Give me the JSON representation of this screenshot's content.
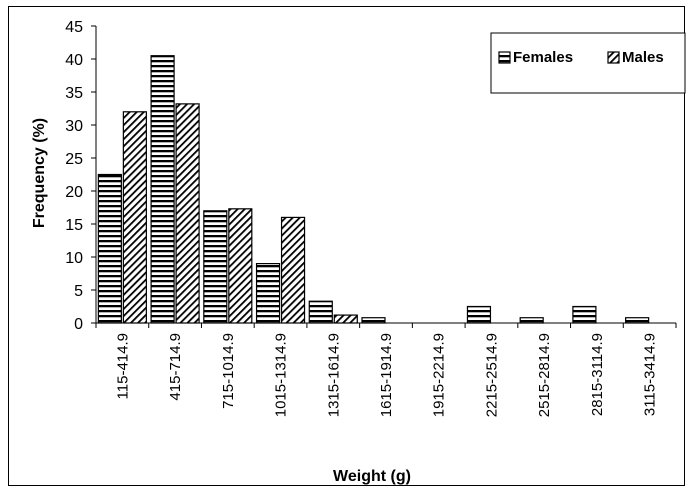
{
  "chart_data": {
    "type": "bar",
    "xlabel": "Weight (g)",
    "ylabel": "Frequency (%)",
    "ylim": [
      0,
      45
    ],
    "yticks": [
      0,
      5,
      10,
      15,
      20,
      25,
      30,
      35,
      40,
      45
    ],
    "categories": [
      "115-414.9",
      "415-714.9",
      "715-1014.9",
      "1015-1314.9",
      "1315-1614.9",
      "1615-1914.9",
      "1915-2214.9",
      "2215-2514.9",
      "2515-2814.9",
      "2815-3114.9",
      "3115-3414.9"
    ],
    "series": [
      {
        "name": "Females",
        "pattern": "horizontal-stripes",
        "values": [
          22.5,
          40.5,
          17,
          9,
          3.3,
          0.8,
          0,
          2.5,
          0.8,
          2.5,
          0.8
        ]
      },
      {
        "name": "Males",
        "pattern": "diagonal-hatch",
        "values": [
          32,
          33.2,
          17.3,
          16,
          1.2,
          0,
          0,
          0,
          0,
          0,
          0
        ]
      }
    ],
    "legend_position": "top-right",
    "grid": false
  },
  "colors": {
    "ink": "#000000",
    "background": "#ffffff"
  }
}
